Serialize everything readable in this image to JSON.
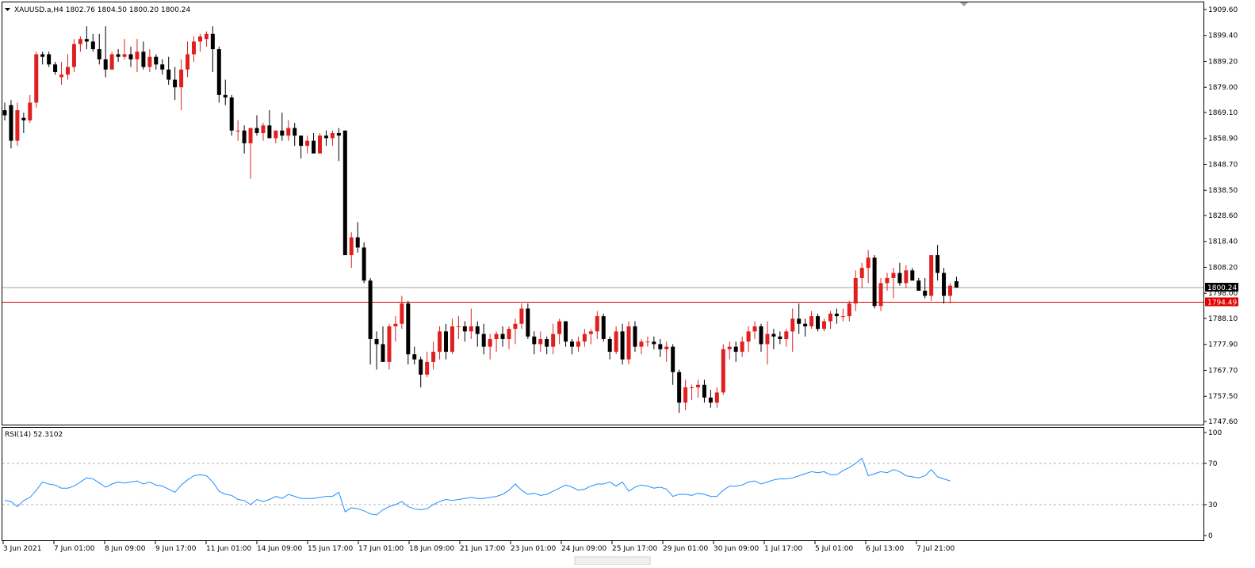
{
  "header": {
    "symbol_line": "XAUUSD.a,H4  1802.76 1804.50 1800.20 1800.24",
    "menu_glyph": "triangle-down-icon"
  },
  "rsi_panel": {
    "label": "RSI(14) 52.3102",
    "levels": [
      70,
      30
    ],
    "ticks": [
      "100",
      "70",
      "30",
      "0"
    ]
  },
  "price_axis": {
    "ticks": [
      "1909.60",
      "1899.40",
      "1889.20",
      "1879.00",
      "1869.10",
      "1858.90",
      "1848.70",
      "1838.50",
      "1828.60",
      "1818.40",
      "1808.20",
      "1798.00",
      "1788.10",
      "1777.90",
      "1767.70",
      "1757.50",
      "1747.60"
    ]
  },
  "time_axis": {
    "labels": [
      "3 Jun 2021",
      "7 Jun 01:00",
      "8 Jun 09:00",
      "9 Jun 17:00",
      "11 Jun 01:00",
      "14 Jun 09:00",
      "15 Jun 17:00",
      "17 Jun 01:00",
      "18 Jun 09:00",
      "21 Jun 17:00",
      "23 Jun 01:00",
      "24 Jun 09:00",
      "25 Jun 17:00",
      "29 Jun 01:00",
      "30 Jun 09:00",
      "1 Jul 17:00",
      "5 Jul 01:00",
      "6 Jul 13:00",
      "7 Jul 21:00"
    ]
  },
  "lines": {
    "current_price": {
      "value": 1800.24,
      "label": "1800.24",
      "color": "#9aa3ad"
    },
    "horizontal_level": {
      "value": 1794.49,
      "label": "1794.49",
      "color": "#e00000"
    }
  },
  "colors": {
    "bull": "#e02020",
    "bear": "#000000",
    "rsi": "#1e8fff",
    "grid_level": "#b0b0b0",
    "frame": "#000000"
  },
  "chart_data": [
    {
      "type": "candlestick",
      "title": "XAUUSD.a,H4",
      "ylim": [
        1745.0,
        1912.0
      ],
      "candles": [
        [
          1870,
          1873,
          1866,
          1868
        ],
        [
          1872,
          1874,
          1855,
          1858
        ],
        [
          1858,
          1873,
          1856,
          1870
        ],
        [
          1867,
          1869,
          1861,
          1866
        ],
        [
          1866,
          1876,
          1865,
          1873
        ],
        [
          1873,
          1893,
          1871,
          1892
        ],
        [
          1892,
          1893,
          1888,
          1891
        ],
        [
          1892,
          1893,
          1887,
          1888
        ],
        [
          1888,
          1889,
          1884,
          1885
        ],
        [
          1883,
          1889,
          1880,
          1884
        ],
        [
          1884,
          1892,
          1882,
          1887
        ],
        [
          1887,
          1898,
          1885,
          1896
        ],
        [
          1896,
          1899,
          1893,
          1898
        ],
        [
          1898,
          1903,
          1894,
          1897
        ],
        [
          1897,
          1900,
          1893,
          1894
        ],
        [
          1894,
          1900,
          1888,
          1890
        ],
        [
          1890,
          1903,
          1883,
          1886
        ],
        [
          1886,
          1893,
          1886,
          1892
        ],
        [
          1892,
          1894,
          1889,
          1891
        ],
        [
          1891,
          1898,
          1890,
          1892
        ],
        [
          1892,
          1895,
          1887,
          1890
        ],
        [
          1890,
          1898,
          1885,
          1893
        ],
        [
          1893,
          1897,
          1886,
          1887
        ],
        [
          1887,
          1894,
          1885,
          1891
        ],
        [
          1891,
          1892,
          1886,
          1888
        ],
        [
          1888,
          1890,
          1884,
          1886
        ],
        [
          1886,
          1891,
          1880,
          1882
        ],
        [
          1882,
          1887,
          1874,
          1879
        ],
        [
          1879,
          1890,
          1870,
          1886
        ],
        [
          1886,
          1897,
          1883,
          1892
        ],
        [
          1892,
          1899,
          1889,
          1897
        ],
        [
          1897,
          1900,
          1893,
          1899
        ],
        [
          1898,
          1901,
          1895,
          1900
        ],
        [
          1900,
          1903,
          1885,
          1894
        ],
        [
          1894,
          1895,
          1873,
          1876
        ],
        [
          1876,
          1882,
          1872,
          1875
        ],
        [
          1875,
          1876,
          1860,
          1862
        ],
        [
          1862,
          1866,
          1858,
          1862
        ],
        [
          1862,
          1864,
          1853,
          1857
        ],
        [
          1857,
          1863,
          1843,
          1863
        ],
        [
          1863,
          1868,
          1860,
          1861
        ],
        [
          1861,
          1865,
          1858,
          1864
        ],
        [
          1864,
          1870,
          1859,
          1859
        ],
        [
          1859,
          1862,
          1857,
          1862
        ],
        [
          1862,
          1869,
          1858,
          1860
        ],
        [
          1860,
          1866,
          1858,
          1863
        ],
        [
          1863,
          1865,
          1856,
          1860
        ],
        [
          1860,
          1860,
          1851,
          1856
        ],
        [
          1856,
          1860,
          1853,
          1858
        ],
        [
          1858,
          1861,
          1853,
          1853
        ],
        [
          1853,
          1861,
          1853,
          1860
        ],
        [
          1860,
          1862,
          1856,
          1859
        ],
        [
          1859,
          1862,
          1856,
          1861
        ],
        [
          1861,
          1863,
          1850,
          1860
        ],
        [
          1862,
          1862,
          1813,
          1813
        ],
        [
          1813,
          1822,
          1808,
          1820
        ],
        [
          1820,
          1826,
          1814,
          1816
        ],
        [
          1816,
          1818,
          1802,
          1803
        ],
        [
          1803,
          1804,
          1770,
          1780
        ],
        [
          1780,
          1783,
          1768,
          1778
        ],
        [
          1778,
          1785,
          1771,
          1771
        ],
        [
          1771,
          1786,
          1768,
          1785
        ],
        [
          1785,
          1789,
          1779,
          1786
        ],
        [
          1786,
          1797,
          1784,
          1794
        ],
        [
          1794,
          1795,
          1770,
          1774
        ],
        [
          1774,
          1777,
          1770,
          1772
        ],
        [
          1772,
          1773,
          1761,
          1766
        ],
        [
          1766,
          1775,
          1765,
          1771
        ],
        [
          1771,
          1779,
          1768,
          1775
        ],
        [
          1775,
          1785,
          1772,
          1783
        ],
        [
          1783,
          1786,
          1772,
          1775
        ],
        [
          1775,
          1788,
          1774,
          1785
        ],
        [
          1785,
          1789,
          1780,
          1785
        ],
        [
          1785,
          1787,
          1779,
          1783
        ],
        [
          1783,
          1792,
          1780,
          1785
        ],
        [
          1785,
          1787,
          1777,
          1782
        ],
        [
          1782,
          1786,
          1774,
          1777
        ],
        [
          1777,
          1782,
          1772,
          1780
        ],
        [
          1780,
          1783,
          1775,
          1782
        ],
        [
          1782,
          1785,
          1777,
          1780
        ],
        [
          1780,
          1785,
          1776,
          1784
        ],
        [
          1784,
          1788,
          1778,
          1786
        ],
        [
          1786,
          1794,
          1784,
          1792
        ],
        [
          1792,
          1794,
          1780,
          1781
        ],
        [
          1781,
          1783,
          1774,
          1778
        ],
        [
          1778,
          1783,
          1775,
          1780
        ],
        [
          1780,
          1781,
          1774,
          1777
        ],
        [
          1777,
          1786,
          1774,
          1782
        ],
        [
          1782,
          1788,
          1778,
          1787
        ],
        [
          1787,
          1787,
          1777,
          1779
        ],
        [
          1779,
          1780,
          1774,
          1777
        ],
        [
          1777,
          1781,
          1775,
          1779
        ],
        [
          1779,
          1784,
          1777,
          1782
        ],
        [
          1782,
          1784,
          1778,
          1783
        ],
        [
          1783,
          1791,
          1780,
          1789
        ],
        [
          1789,
          1790,
          1779,
          1780
        ],
        [
          1780,
          1781,
          1772,
          1775
        ],
        [
          1775,
          1785,
          1774,
          1783
        ],
        [
          1783,
          1786,
          1770,
          1772
        ],
        [
          1772,
          1787,
          1770,
          1785
        ],
        [
          1785,
          1787,
          1775,
          1777
        ],
        [
          1777,
          1780,
          1774,
          1779
        ],
        [
          1779,
          1781,
          1777,
          1779
        ],
        [
          1779,
          1781,
          1776,
          1778
        ],
        [
          1778,
          1780,
          1773,
          1776
        ],
        [
          1776,
          1779,
          1771,
          1777
        ],
        [
          1777,
          1778,
          1762,
          1767
        ],
        [
          1767,
          1768,
          1751,
          1755
        ],
        [
          1755,
          1764,
          1752,
          1761
        ],
        [
          1761,
          1762,
          1756,
          1761
        ],
        [
          1761,
          1764,
          1757,
          1762
        ],
        [
          1762,
          1764,
          1755,
          1757
        ],
        [
          1757,
          1760,
          1753,
          1755
        ],
        [
          1755,
          1761,
          1753,
          1759
        ],
        [
          1759,
          1778,
          1758,
          1776
        ],
        [
          1776,
          1779,
          1772,
          1777
        ],
        [
          1777,
          1779,
          1771,
          1775
        ],
        [
          1775,
          1781,
          1773,
          1779
        ],
        [
          1779,
          1785,
          1775,
          1783
        ],
        [
          1783,
          1787,
          1780,
          1785
        ],
        [
          1785,
          1786,
          1775,
          1778
        ],
        [
          1778,
          1787,
          1770,
          1782
        ],
        [
          1782,
          1784,
          1776,
          1781
        ],
        [
          1781,
          1783,
          1778,
          1780
        ],
        [
          1780,
          1784,
          1777,
          1783
        ],
        [
          1783,
          1792,
          1775,
          1788
        ],
        [
          1788,
          1794,
          1782,
          1786
        ],
        [
          1786,
          1788,
          1781,
          1785
        ],
        [
          1785,
          1791,
          1784,
          1789
        ],
        [
          1789,
          1790,
          1783,
          1784
        ],
        [
          1784,
          1788,
          1783,
          1787
        ],
        [
          1787,
          1791,
          1784,
          1790
        ],
        [
          1790,
          1792,
          1786,
          1789
        ],
        [
          1789,
          1792,
          1787,
          1789
        ],
        [
          1789,
          1795,
          1787,
          1794
        ],
        [
          1794,
          1807,
          1791,
          1804
        ],
        [
          1804,
          1810,
          1800,
          1808
        ],
        [
          1808,
          1815,
          1802,
          1812
        ],
        [
          1812,
          1813,
          1792,
          1793
        ],
        [
          1793,
          1804,
          1791,
          1802
        ],
        [
          1802,
          1806,
          1799,
          1804
        ],
        [
          1804,
          1808,
          1796,
          1806
        ],
        [
          1806,
          1810,
          1801,
          1802
        ],
        [
          1802,
          1809,
          1800,
          1807
        ],
        [
          1807,
          1808,
          1803,
          1803
        ],
        [
          1803,
          1804,
          1799,
          1799
        ],
        [
          1799,
          1804,
          1796,
          1797
        ],
        [
          1797,
          1812,
          1795,
          1813
        ],
        [
          1813,
          1817,
          1803,
          1806
        ],
        [
          1806,
          1808,
          1794,
          1797
        ],
        [
          1797,
          1802,
          1794,
          1801
        ],
        [
          1802.76,
          1804.5,
          1800.2,
          1800.24
        ]
      ]
    },
    {
      "type": "line",
      "title": "RSI(14) 52.3102",
      "ylim": [
        0,
        100
      ],
      "series": [
        {
          "values": [
            34,
            33,
            28,
            34,
            37,
            44,
            52,
            50,
            49,
            46,
            46,
            48,
            52,
            56,
            55,
            51,
            47,
            50,
            52,
            51,
            52,
            53,
            50,
            52,
            49,
            48,
            45,
            42,
            49,
            54,
            58,
            59,
            58,
            52,
            43,
            40,
            39,
            35,
            34,
            30,
            35,
            33,
            35,
            38,
            36,
            40,
            38,
            36,
            36,
            36,
            37,
            38,
            38,
            42,
            23,
            27,
            26,
            24,
            21,
            20,
            25,
            28,
            30,
            33,
            28,
            26,
            25,
            26,
            30,
            33,
            35,
            34,
            35,
            36,
            37,
            36,
            36,
            37,
            38,
            40,
            44,
            50,
            44,
            40,
            41,
            39,
            40,
            43,
            46,
            49,
            47,
            44,
            45,
            48,
            50,
            50,
            52,
            48,
            52,
            43,
            47,
            49,
            48,
            46,
            47,
            45,
            38,
            40,
            40,
            39,
            41,
            40,
            38,
            38,
            44,
            48,
            48,
            49,
            52,
            53,
            50,
            52,
            54,
            55,
            55,
            56,
            58,
            60,
            62,
            61,
            62,
            59,
            59,
            63,
            66,
            70,
            75,
            58,
            60,
            62,
            61,
            64,
            62,
            58,
            57,
            56,
            58,
            64,
            57,
            55,
            53
          ]
        }
      ]
    }
  ]
}
